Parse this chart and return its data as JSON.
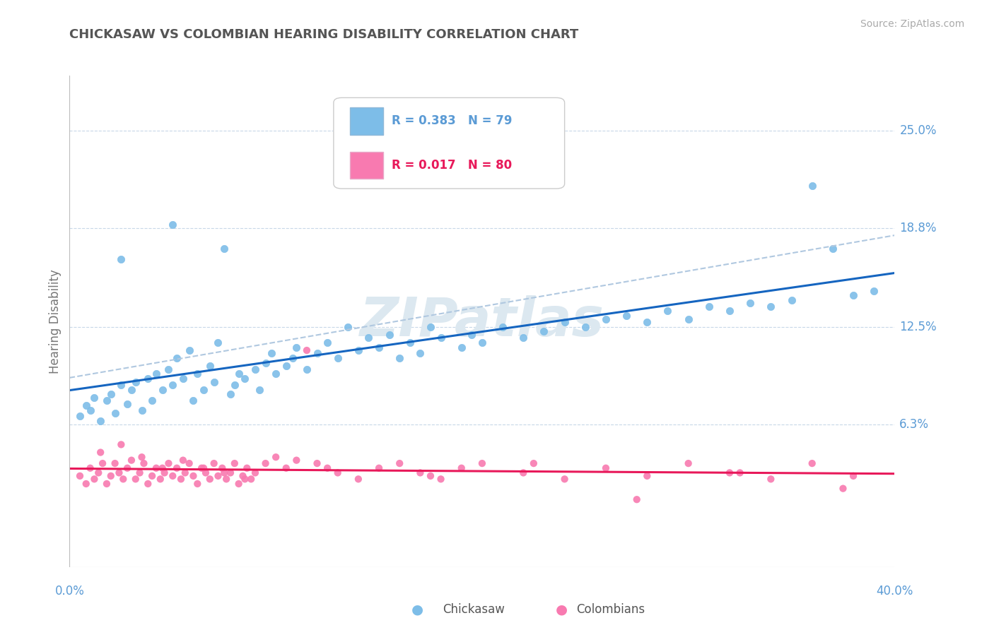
{
  "title": "CHICKASAW VS COLOMBIAN HEARING DISABILITY CORRELATION CHART",
  "source": "Source: ZipAtlas.com",
  "ylabel": "Hearing Disability",
  "xlim": [
    0.0,
    0.4
  ],
  "ylim": [
    -0.028,
    0.285
  ],
  "legend_r1": "R = 0.383",
  "legend_n1": "N = 79",
  "legend_r2": "R = 0.017",
  "legend_n2": "N = 80",
  "legend_label1": "Chickasaw",
  "legend_label2": "Colombians",
  "scatter_color1": "#7dbde8",
  "scatter_color2": "#f87ab0",
  "trend_color1": "#1565c0",
  "trend_color2": "#e8195a",
  "trend_dashed_color": "#b0c8e0",
  "grid_color": "#c8d8e8",
  "background_color": "#ffffff",
  "title_color": "#555555",
  "axis_label_color": "#5b9bd5",
  "watermark_color": "#dce8f0",
  "ytick_vals": [
    0.063,
    0.125,
    0.188,
    0.25
  ],
  "ytick_labs": [
    "6.3%",
    "12.5%",
    "18.8%",
    "25.0%"
  ],
  "chickasaw_x": [
    0.005,
    0.008,
    0.01,
    0.012,
    0.015,
    0.018,
    0.02,
    0.022,
    0.025,
    0.028,
    0.03,
    0.032,
    0.035,
    0.038,
    0.04,
    0.042,
    0.045,
    0.048,
    0.05,
    0.052,
    0.055,
    0.058,
    0.06,
    0.062,
    0.065,
    0.068,
    0.07,
    0.072,
    0.075,
    0.078,
    0.08,
    0.082,
    0.085,
    0.09,
    0.092,
    0.095,
    0.098,
    0.1,
    0.105,
    0.108,
    0.11,
    0.115,
    0.12,
    0.125,
    0.13,
    0.135,
    0.14,
    0.145,
    0.15,
    0.155,
    0.16,
    0.165,
    0.17,
    0.175,
    0.18,
    0.19,
    0.195,
    0.2,
    0.21,
    0.22,
    0.23,
    0.24,
    0.25,
    0.26,
    0.27,
    0.28,
    0.29,
    0.3,
    0.31,
    0.32,
    0.33,
    0.34,
    0.35,
    0.36,
    0.37,
    0.38,
    0.39,
    0.025,
    0.05
  ],
  "chickasaw_y": [
    0.068,
    0.075,
    0.072,
    0.08,
    0.065,
    0.078,
    0.082,
    0.07,
    0.088,
    0.076,
    0.085,
    0.09,
    0.072,
    0.092,
    0.078,
    0.095,
    0.085,
    0.098,
    0.088,
    0.105,
    0.092,
    0.11,
    0.078,
    0.095,
    0.085,
    0.1,
    0.09,
    0.115,
    0.175,
    0.082,
    0.088,
    0.095,
    0.092,
    0.098,
    0.085,
    0.102,
    0.108,
    0.095,
    0.1,
    0.105,
    0.112,
    0.098,
    0.108,
    0.115,
    0.105,
    0.125,
    0.11,
    0.118,
    0.112,
    0.12,
    0.105,
    0.115,
    0.108,
    0.125,
    0.118,
    0.112,
    0.12,
    0.115,
    0.125,
    0.118,
    0.122,
    0.128,
    0.125,
    0.13,
    0.132,
    0.128,
    0.135,
    0.13,
    0.138,
    0.135,
    0.14,
    0.138,
    0.142,
    0.215,
    0.175,
    0.145,
    0.148,
    0.168,
    0.19
  ],
  "colombian_x": [
    0.005,
    0.008,
    0.01,
    0.012,
    0.014,
    0.016,
    0.018,
    0.02,
    0.022,
    0.024,
    0.026,
    0.028,
    0.03,
    0.032,
    0.034,
    0.036,
    0.038,
    0.04,
    0.042,
    0.044,
    0.046,
    0.048,
    0.05,
    0.052,
    0.054,
    0.056,
    0.058,
    0.06,
    0.062,
    0.064,
    0.066,
    0.068,
    0.07,
    0.072,
    0.074,
    0.076,
    0.078,
    0.08,
    0.082,
    0.084,
    0.086,
    0.088,
    0.09,
    0.095,
    0.1,
    0.105,
    0.11,
    0.115,
    0.12,
    0.13,
    0.14,
    0.15,
    0.16,
    0.17,
    0.18,
    0.19,
    0.2,
    0.22,
    0.24,
    0.26,
    0.28,
    0.3,
    0.32,
    0.34,
    0.36,
    0.38,
    0.015,
    0.025,
    0.035,
    0.045,
    0.055,
    0.065,
    0.075,
    0.085,
    0.125,
    0.175,
    0.225,
    0.275,
    0.325,
    0.375
  ],
  "colombian_y": [
    0.03,
    0.025,
    0.035,
    0.028,
    0.032,
    0.038,
    0.025,
    0.03,
    0.038,
    0.032,
    0.028,
    0.035,
    0.04,
    0.028,
    0.032,
    0.038,
    0.025,
    0.03,
    0.035,
    0.028,
    0.032,
    0.038,
    0.03,
    0.035,
    0.028,
    0.032,
    0.038,
    0.03,
    0.025,
    0.035,
    0.032,
    0.028,
    0.038,
    0.03,
    0.035,
    0.028,
    0.032,
    0.038,
    0.025,
    0.03,
    0.035,
    0.028,
    0.032,
    0.038,
    0.042,
    0.035,
    0.04,
    0.11,
    0.038,
    0.032,
    0.028,
    0.035,
    0.038,
    0.032,
    0.028,
    0.035,
    0.038,
    0.032,
    0.028,
    0.035,
    0.03,
    0.038,
    0.032,
    0.028,
    0.038,
    0.03,
    0.045,
    0.05,
    0.042,
    0.035,
    0.04,
    0.035,
    0.032,
    0.028,
    0.035,
    0.03,
    0.038,
    0.015,
    0.032,
    0.022
  ]
}
